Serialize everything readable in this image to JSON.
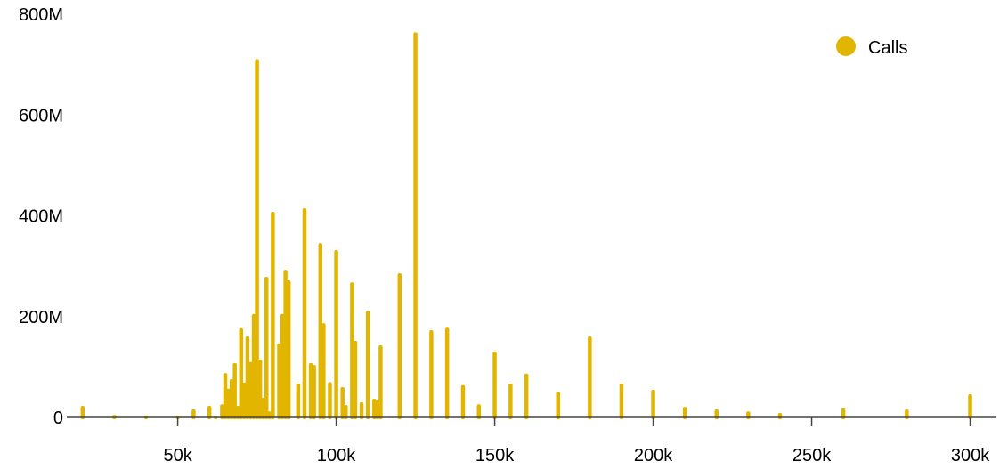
{
  "chart_data": {
    "type": "bar",
    "title": "",
    "xlabel": "",
    "ylabel": "",
    "xlim": [
      15,
      308
    ],
    "ylim": [
      0,
      800
    ],
    "x_ticks": [
      50,
      100,
      150,
      200,
      250,
      300
    ],
    "x_tick_labels": [
      "50k",
      "100k",
      "150k",
      "200k",
      "250k",
      "300k"
    ],
    "y_ticks": [
      0,
      200,
      400,
      600,
      800
    ],
    "y_tick_labels": [
      "0",
      "200M",
      "400M",
      "600M",
      "800M"
    ],
    "grid": false,
    "legend_position": "top-right",
    "color": "#e2b600",
    "series": [
      {
        "name": "Calls",
        "x_unit": "k",
        "y_unit": "M",
        "points": [
          [
            20,
            23
          ],
          [
            30,
            5
          ],
          [
            40,
            3
          ],
          [
            50,
            3
          ],
          [
            55,
            16
          ],
          [
            60,
            23
          ],
          [
            62,
            2
          ],
          [
            64,
            26
          ],
          [
            65,
            88
          ],
          [
            66,
            57
          ],
          [
            67,
            76
          ],
          [
            68,
            108
          ],
          [
            69,
            23
          ],
          [
            70,
            177
          ],
          [
            71,
            69
          ],
          [
            72,
            161
          ],
          [
            73,
            110
          ],
          [
            74,
            205
          ],
          [
            75,
            711
          ],
          [
            76,
            115
          ],
          [
            77,
            39
          ],
          [
            78,
            279
          ],
          [
            79,
            12
          ],
          [
            80,
            408
          ],
          [
            82,
            147
          ],
          [
            83,
            205
          ],
          [
            84,
            293
          ],
          [
            85,
            272
          ],
          [
            88,
            67
          ],
          [
            90,
            415
          ],
          [
            92,
            108
          ],
          [
            93,
            104
          ],
          [
            95,
            346
          ],
          [
            96,
            187
          ],
          [
            98,
            70
          ],
          [
            100,
            332
          ],
          [
            102,
            60
          ],
          [
            103,
            25
          ],
          [
            105,
            268
          ],
          [
            106,
            152
          ],
          [
            108,
            30
          ],
          [
            110,
            212
          ],
          [
            112,
            37
          ],
          [
            113,
            34
          ],
          [
            114,
            143
          ],
          [
            120,
            286
          ],
          [
            125,
            764
          ],
          [
            130,
            173
          ],
          [
            135,
            178
          ],
          [
            140,
            64
          ],
          [
            145,
            26
          ],
          [
            150,
            131
          ],
          [
            155,
            67
          ],
          [
            160,
            87
          ],
          [
            170,
            51
          ],
          [
            180,
            161
          ],
          [
            190,
            67
          ],
          [
            200,
            55
          ],
          [
            210,
            21
          ],
          [
            220,
            16
          ],
          [
            230,
            12
          ],
          [
            240,
            9
          ],
          [
            260,
            18
          ],
          [
            280,
            16
          ],
          [
            300,
            46
          ]
        ]
      }
    ]
  }
}
